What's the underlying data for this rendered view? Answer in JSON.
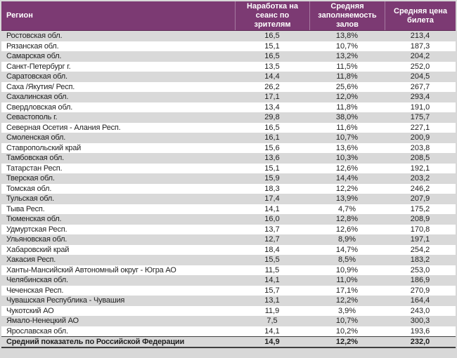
{
  "chart_data": {
    "type": "table",
    "columns": [
      "Регион",
      "Наработка на сеанс по зрителям",
      "Средняя заполняемость залов",
      "Средняя цена билета"
    ],
    "rows": [
      {
        "region": "Ростовская обл.",
        "per_session": "16,5",
        "occupancy": "13,8%",
        "price": "213,4"
      },
      {
        "region": "Рязанская обл.",
        "per_session": "15,1",
        "occupancy": "10,7%",
        "price": "187,3"
      },
      {
        "region": "Самарская обл.",
        "per_session": "16,5",
        "occupancy": "13,2%",
        "price": "204,2"
      },
      {
        "region": "Санкт-Петербург г.",
        "per_session": "13,5",
        "occupancy": "11,5%",
        "price": "252,0"
      },
      {
        "region": "Саратовская обл.",
        "per_session": "14,4",
        "occupancy": "11,8%",
        "price": "204,5"
      },
      {
        "region": "Саха /Якутия/ Респ.",
        "per_session": "26,2",
        "occupancy": "25,6%",
        "price": "267,7"
      },
      {
        "region": "Сахалинская обл.",
        "per_session": "17,1",
        "occupancy": "12,0%",
        "price": "293,4"
      },
      {
        "region": "Свердловская обл.",
        "per_session": "13,4",
        "occupancy": "11,8%",
        "price": "191,0"
      },
      {
        "region": "Севастополь г.",
        "per_session": "29,8",
        "occupancy": "38,0%",
        "price": "175,7"
      },
      {
        "region": "Северная Осетия - Алания Респ.",
        "per_session": "16,5",
        "occupancy": "11,6%",
        "price": "227,1"
      },
      {
        "region": "Смоленская обл.",
        "per_session": "16,1",
        "occupancy": "10,7%",
        "price": "200,9"
      },
      {
        "region": "Ставропольский край",
        "per_session": "15,6",
        "occupancy": "13,6%",
        "price": "203,8"
      },
      {
        "region": "Тамбовская обл.",
        "per_session": "13,6",
        "occupancy": "10,3%",
        "price": "208,5"
      },
      {
        "region": "Татарстан Респ.",
        "per_session": "15,1",
        "occupancy": "12,6%",
        "price": "192,1"
      },
      {
        "region": "Тверская обл.",
        "per_session": "15,9",
        "occupancy": "14,4%",
        "price": "203,2"
      },
      {
        "region": "Томская обл.",
        "per_session": "18,3",
        "occupancy": "12,2%",
        "price": "246,2"
      },
      {
        "region": "Тульская обл.",
        "per_session": "17,4",
        "occupancy": "13,9%",
        "price": "207,9"
      },
      {
        "region": "Тыва Респ.",
        "per_session": "14,1",
        "occupancy": "4,7%",
        "price": "175,2"
      },
      {
        "region": "Тюменская обл.",
        "per_session": "16,0",
        "occupancy": "12,8%",
        "price": "208,9"
      },
      {
        "region": "Удмуртская Респ.",
        "per_session": "13,7",
        "occupancy": "12,6%",
        "price": "170,8"
      },
      {
        "region": "Ульяновская обл.",
        "per_session": "12,7",
        "occupancy": "8,9%",
        "price": "197,1"
      },
      {
        "region": "Хабаровский край",
        "per_session": "18,4",
        "occupancy": "14,7%",
        "price": "254,2"
      },
      {
        "region": "Хакасия Респ.",
        "per_session": "15,5",
        "occupancy": "8,5%",
        "price": "183,2"
      },
      {
        "region": "Ханты-Мансийский Автономный округ - Югра АО",
        "per_session": "11,5",
        "occupancy": "10,9%",
        "price": "253,0"
      },
      {
        "region": "Челябинская обл.",
        "per_session": "14,1",
        "occupancy": "11,0%",
        "price": "186,9"
      },
      {
        "region": "Чеченская Респ.",
        "per_session": "15,7",
        "occupancy": "17,1%",
        "price": "270,9"
      },
      {
        "region": "Чувашская Республика - Чувашия",
        "per_session": "13,1",
        "occupancy": "12,2%",
        "price": "164,4"
      },
      {
        "region": "Чукотский АО",
        "per_session": "11,9",
        "occupancy": "3,9%",
        "price": "243,0"
      },
      {
        "region": "Ямало-Ненецкий АО",
        "per_session": "7,5",
        "occupancy": "10,7%",
        "price": "300,3"
      },
      {
        "region": "Ярославская обл.",
        "per_session": "14,1",
        "occupancy": "10,2%",
        "price": "193,6"
      }
    ],
    "summary": {
      "region": "Средний показатель по Российской Федерации",
      "per_session": "14,9",
      "occupancy": "12,2%",
      "price": "232,0"
    },
    "layout": {
      "stripes": "odd-rows-gray",
      "header_align": "center",
      "number_align": "center"
    },
    "colors": {
      "header_bg": "#7C3A73",
      "header_text": "#FFFFFF",
      "stripe_gray": "#D9D9D9",
      "stripe_white": "#FFFFFF",
      "summary_border": "#3F3F3F",
      "body_text": "#1F1F1F",
      "page_bg": "#D8D8D8"
    }
  }
}
